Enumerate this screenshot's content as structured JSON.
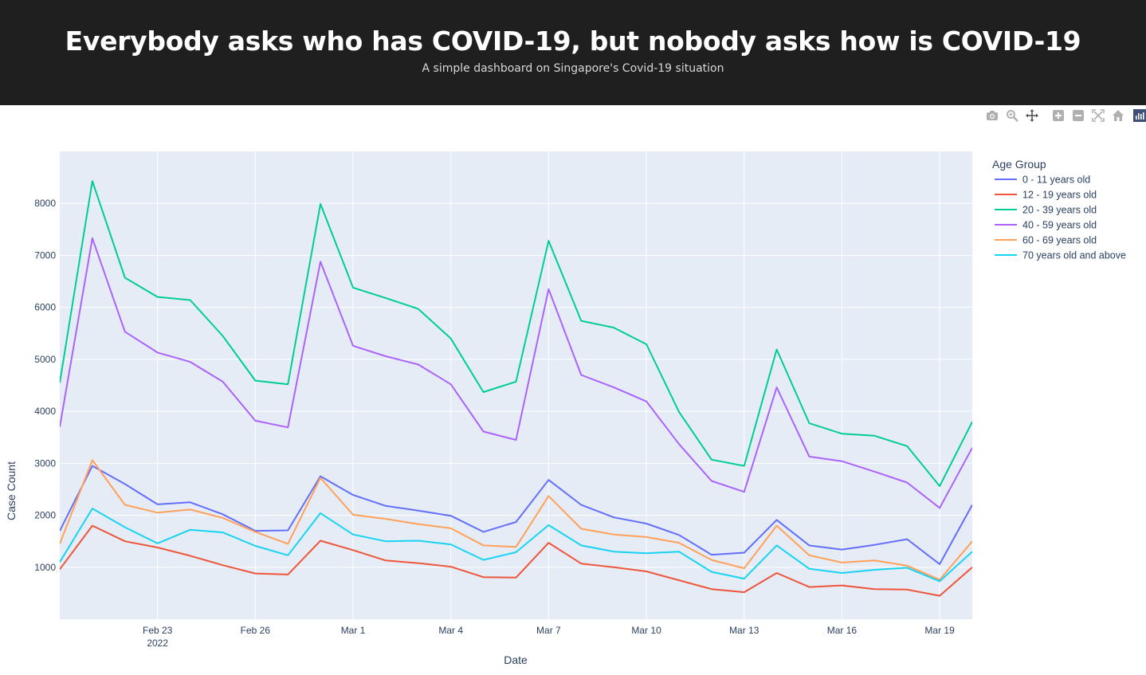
{
  "header": {
    "title": "Everybody asks who has COVID-19, but nobody asks how is COVID-19",
    "subtitle": "A simple dashboard on Singapore's Covid-19 situation"
  },
  "modebar": {
    "icons": [
      "camera-icon",
      "zoom-icon",
      "pan-icon",
      "zoom-in-icon",
      "zoom-out-icon",
      "autoscale-icon",
      "reset-axes-icon",
      "plotly-logo-icon"
    ]
  },
  "chart_data": {
    "type": "line",
    "xlabel": "Date",
    "ylabel": "Case Count",
    "legend_title": "Age Group",
    "legend_position": "right",
    "grid": true,
    "x_range": [
      "2022-02-20",
      "2022-03-20"
    ],
    "ylim": [
      0,
      9000
    ],
    "y_ticks": [
      1000,
      2000,
      3000,
      4000,
      5000,
      6000,
      7000,
      8000
    ],
    "x_ticks": [
      {
        "date": "2022-02-23",
        "label": "Feb 23",
        "sublabel": "2022"
      },
      {
        "date": "2022-02-26",
        "label": "Feb 26",
        "sublabel": ""
      },
      {
        "date": "2022-03-01",
        "label": "Mar 1",
        "sublabel": ""
      },
      {
        "date": "2022-03-04",
        "label": "Mar 4",
        "sublabel": ""
      },
      {
        "date": "2022-03-07",
        "label": "Mar 7",
        "sublabel": ""
      },
      {
        "date": "2022-03-10",
        "label": "Mar 10",
        "sublabel": ""
      },
      {
        "date": "2022-03-13",
        "label": "Mar 13",
        "sublabel": ""
      },
      {
        "date": "2022-03-16",
        "label": "Mar 16",
        "sublabel": ""
      },
      {
        "date": "2022-03-19",
        "label": "Mar 19",
        "sublabel": ""
      }
    ],
    "x": [
      "2022-02-20",
      "2022-02-21",
      "2022-02-22",
      "2022-02-23",
      "2022-02-24",
      "2022-02-25",
      "2022-02-26",
      "2022-02-27",
      "2022-02-28",
      "2022-03-01",
      "2022-03-02",
      "2022-03-03",
      "2022-03-04",
      "2022-03-05",
      "2022-03-06",
      "2022-03-07",
      "2022-03-08",
      "2022-03-09",
      "2022-03-10",
      "2022-03-11",
      "2022-03-12",
      "2022-03-13",
      "2022-03-14",
      "2022-03-15",
      "2022-03-16",
      "2022-03-17",
      "2022-03-18",
      "2022-03-19",
      "2022-03-20"
    ],
    "series": [
      {
        "name": "0 - 11 years old",
        "color": "#636efa",
        "values": [
          1700,
          2950,
          2600,
          2210,
          2250,
          2020,
          1700,
          1710,
          2750,
          2390,
          2180,
          2090,
          1990,
          1680,
          1870,
          2680,
          2200,
          1960,
          1840,
          1620,
          1240,
          1280,
          1910,
          1420,
          1340,
          1430,
          1540,
          1060,
          2200
        ]
      },
      {
        "name": "12 - 19 years old",
        "color": "#ef553b",
        "values": [
          960,
          1800,
          1500,
          1380,
          1220,
          1040,
          880,
          860,
          1510,
          1330,
          1130,
          1080,
          1010,
          810,
          800,
          1470,
          1070,
          1000,
          920,
          750,
          580,
          520,
          890,
          620,
          650,
          580,
          570,
          450,
          1000
        ]
      },
      {
        "name": "20 - 39 years old",
        "color": "#00cc96",
        "values": [
          4550,
          8430,
          6570,
          6200,
          6140,
          5450,
          4590,
          4520,
          7990,
          6380,
          6180,
          5970,
          5400,
          4370,
          4570,
          7280,
          5740,
          5610,
          5290,
          3990,
          3070,
          2950,
          5190,
          3770,
          3570,
          3530,
          3330,
          2560,
          3800
        ]
      },
      {
        "name": "40 - 59 years old",
        "color": "#ab63fa",
        "values": [
          3700,
          7330,
          5530,
          5130,
          4950,
          4570,
          3820,
          3690,
          6880,
          5260,
          5060,
          4900,
          4520,
          3610,
          3450,
          6350,
          4700,
          4460,
          4190,
          3370,
          2660,
          2450,
          4460,
          3130,
          3040,
          2840,
          2630,
          2140,
          3300
        ]
      },
      {
        "name": "60 - 69 years old",
        "color": "#ffa15a",
        "values": [
          1450,
          3060,
          2200,
          2050,
          2110,
          1950,
          1680,
          1450,
          2720,
          2010,
          1930,
          1830,
          1750,
          1420,
          1390,
          2370,
          1740,
          1630,
          1580,
          1470,
          1140,
          980,
          1800,
          1230,
          1090,
          1130,
          1030,
          760,
          1500
        ]
      },
      {
        "name": "70 years old and above",
        "color": "#19d3f3",
        "values": [
          1100,
          2130,
          1770,
          1460,
          1720,
          1670,
          1410,
          1230,
          2040,
          1630,
          1500,
          1510,
          1440,
          1140,
          1290,
          1810,
          1420,
          1300,
          1270,
          1300,
          910,
          780,
          1420,
          970,
          890,
          950,
          990,
          730,
          1300
        ]
      }
    ]
  }
}
